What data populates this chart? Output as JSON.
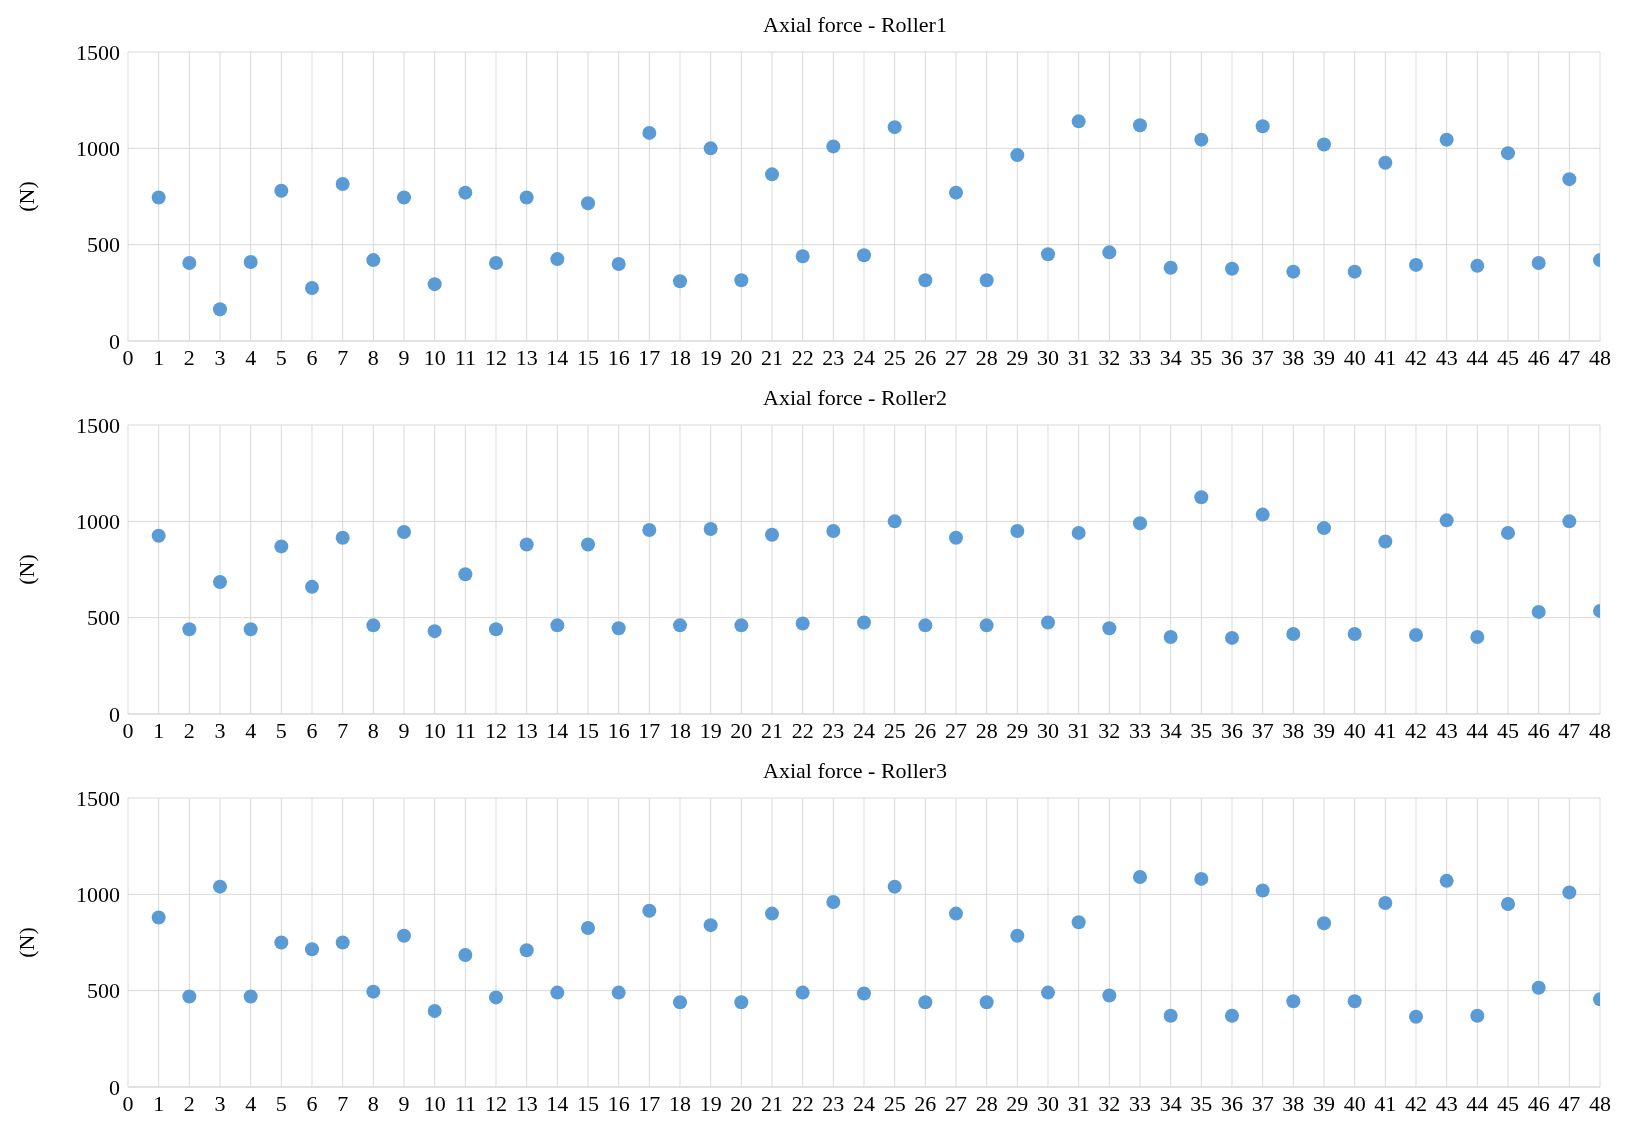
{
  "chart_data": [
    {
      "type": "scatter",
      "title": "Axial force - Roller1",
      "ylabel": "(N)",
      "x": [
        1,
        2,
        3,
        4,
        5,
        6,
        7,
        8,
        9,
        10,
        11,
        12,
        13,
        14,
        15,
        16,
        17,
        18,
        19,
        20,
        21,
        22,
        23,
        24,
        25,
        26,
        27,
        28,
        29,
        30,
        31,
        32,
        33,
        34,
        35,
        36,
        37,
        38,
        39,
        40,
        41,
        42,
        43,
        44,
        45,
        46,
        47,
        48
      ],
      "xlim": [
        0,
        48
      ],
      "xticks": [
        0,
        1,
        2,
        3,
        4,
        5,
        6,
        7,
        8,
        9,
        10,
        11,
        12,
        13,
        14,
        15,
        16,
        17,
        18,
        19,
        20,
        21,
        22,
        23,
        24,
        25,
        26,
        27,
        28,
        29,
        30,
        31,
        32,
        33,
        34,
        35,
        36,
        37,
        38,
        39,
        40,
        41,
        42,
        43,
        44,
        45,
        46,
        47,
        48
      ],
      "ylim": [
        0,
        1500
      ],
      "yticks": [
        0,
        500,
        1000,
        1500
      ],
      "grid": true,
      "marker": "circle",
      "series": [
        {
          "color": "#5b9bd5",
          "values": [
            745,
            405,
            165,
            410,
            780,
            275,
            815,
            420,
            745,
            295,
            770,
            405,
            745,
            425,
            715,
            400,
            1080,
            310,
            1000,
            315,
            865,
            440,
            1010,
            445,
            1110,
            315,
            770,
            315,
            965,
            450,
            1140,
            460,
            1120,
            380,
            1045,
            375,
            1115,
            360,
            1020,
            360,
            925,
            395,
            1045,
            390,
            975,
            405,
            840,
            420
          ]
        }
      ]
    },
    {
      "type": "scatter",
      "title": "Axial force - Roller2",
      "ylabel": "(N)",
      "x": [
        1,
        2,
        3,
        4,
        5,
        6,
        7,
        8,
        9,
        10,
        11,
        12,
        13,
        14,
        15,
        16,
        17,
        18,
        19,
        20,
        21,
        22,
        23,
        24,
        25,
        26,
        27,
        28,
        29,
        30,
        31,
        32,
        33,
        34,
        35,
        36,
        37,
        38,
        39,
        40,
        41,
        42,
        43,
        44,
        45,
        46,
        47,
        48
      ],
      "xlim": [
        0,
        48
      ],
      "xticks": [
        0,
        1,
        2,
        3,
        4,
        5,
        6,
        7,
        8,
        9,
        10,
        11,
        12,
        13,
        14,
        15,
        16,
        17,
        18,
        19,
        20,
        21,
        22,
        23,
        24,
        25,
        26,
        27,
        28,
        29,
        30,
        31,
        32,
        33,
        34,
        35,
        36,
        37,
        38,
        39,
        40,
        41,
        42,
        43,
        44,
        45,
        46,
        47,
        48
      ],
      "ylim": [
        0,
        1500
      ],
      "yticks": [
        0,
        500,
        1000,
        1500
      ],
      "grid": true,
      "marker": "circle",
      "series": [
        {
          "color": "#5b9bd5",
          "values": [
            925,
            440,
            685,
            440,
            870,
            660,
            915,
            460,
            945,
            430,
            725,
            440,
            880,
            460,
            880,
            445,
            955,
            460,
            960,
            460,
            930,
            470,
            950,
            475,
            1000,
            460,
            915,
            460,
            950,
            475,
            940,
            445,
            990,
            400,
            1125,
            395,
            1035,
            415,
            965,
            415,
            895,
            410,
            1005,
            400,
            940,
            530,
            1000,
            535
          ]
        }
      ]
    },
    {
      "type": "scatter",
      "title": "Axial force - Roller3",
      "ylabel": "(N)",
      "x": [
        1,
        2,
        3,
        4,
        5,
        6,
        7,
        8,
        9,
        10,
        11,
        12,
        13,
        14,
        15,
        16,
        17,
        18,
        19,
        20,
        21,
        22,
        23,
        24,
        25,
        26,
        27,
        28,
        29,
        30,
        31,
        32,
        33,
        34,
        35,
        36,
        37,
        38,
        39,
        40,
        41,
        42,
        43,
        44,
        45,
        46,
        47,
        48
      ],
      "xlim": [
        0,
        48
      ],
      "xticks": [
        0,
        1,
        2,
        3,
        4,
        5,
        6,
        7,
        8,
        9,
        10,
        11,
        12,
        13,
        14,
        15,
        16,
        17,
        18,
        19,
        20,
        21,
        22,
        23,
        24,
        25,
        26,
        27,
        28,
        29,
        30,
        31,
        32,
        33,
        34,
        35,
        36,
        37,
        38,
        39,
        40,
        41,
        42,
        43,
        44,
        45,
        46,
        47,
        48
      ],
      "ylim": [
        0,
        1500
      ],
      "yticks": [
        0,
        500,
        1000,
        1500
      ],
      "grid": true,
      "marker": "circle",
      "series": [
        {
          "color": "#5b9bd5",
          "values": [
            880,
            470,
            1040,
            470,
            750,
            715,
            750,
            495,
            785,
            395,
            685,
            465,
            710,
            490,
            825,
            490,
            915,
            440,
            840,
            440,
            900,
            490,
            960,
            485,
            1040,
            440,
            900,
            440,
            785,
            490,
            855,
            475,
            1090,
            370,
            1080,
            370,
            1020,
            445,
            850,
            445,
            955,
            365,
            1070,
            370,
            950,
            515,
            1010,
            455
          ]
        }
      ]
    }
  ]
}
